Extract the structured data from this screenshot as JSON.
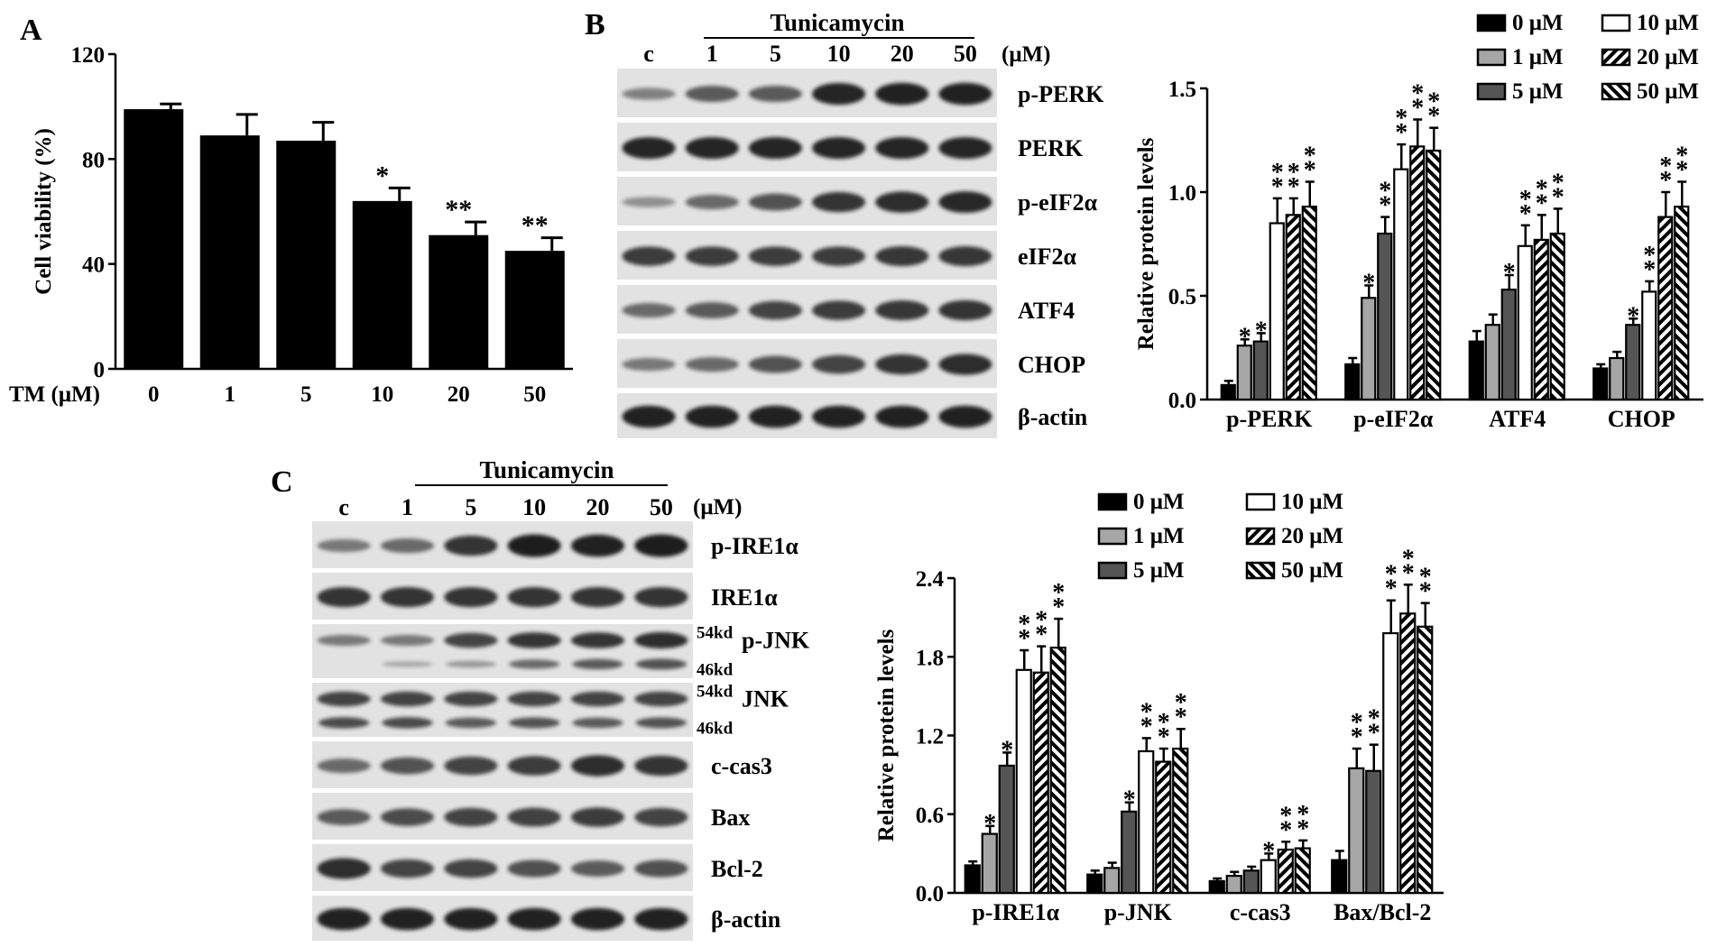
{
  "figure": {
    "panel_letters": [
      "A",
      "B",
      "C"
    ],
    "tunicamycin_label": "Tunicamycin",
    "unit_label": "(μM)"
  },
  "colors": {
    "band": "#151515",
    "blot_bg": "#e2e2e2",
    "bar_black": "#000000",
    "bar_lightgray": "#a6a6a6",
    "bar_darkgray": "#555555",
    "bar_white": "#ffffff"
  },
  "western_b": {
    "lanes": [
      "c",
      "1",
      "5",
      "10",
      "20",
      "50"
    ],
    "rows": [
      {
        "label": "p-PERK",
        "intensity": [
          0.3,
          0.55,
          0.55,
          0.9,
          0.92,
          0.92
        ]
      },
      {
        "label": "PERK",
        "intensity": [
          0.9,
          0.9,
          0.9,
          0.9,
          0.9,
          0.9
        ]
      },
      {
        "label": "p-eIF2α",
        "intensity": [
          0.2,
          0.45,
          0.6,
          0.8,
          0.85,
          0.88
        ]
      },
      {
        "label": "eIF2α",
        "intensity": [
          0.75,
          0.75,
          0.75,
          0.75,
          0.78,
          0.78
        ]
      },
      {
        "label": "ATF4",
        "intensity": [
          0.45,
          0.55,
          0.7,
          0.75,
          0.78,
          0.8
        ]
      },
      {
        "label": "CHOP",
        "intensity": [
          0.35,
          0.45,
          0.6,
          0.7,
          0.8,
          0.85
        ]
      },
      {
        "label": "β-actin",
        "intensity": [
          0.92,
          0.92,
          0.92,
          0.92,
          0.92,
          0.92
        ]
      }
    ]
  },
  "western_c": {
    "lanes": [
      "c",
      "1",
      "5",
      "10",
      "20",
      "50"
    ],
    "rows": [
      {
        "label": "p-IRE1α",
        "intensity": [
          0.35,
          0.45,
          0.8,
          0.95,
          0.92,
          0.95
        ]
      },
      {
        "label": "IRE1α",
        "intensity": [
          0.8,
          0.8,
          0.8,
          0.8,
          0.8,
          0.8
        ]
      },
      {
        "label": "p-JNK",
        "markers": [
          "54kd",
          "46kd"
        ],
        "intensity": [
          0.35,
          0.35,
          0.7,
          0.8,
          0.8,
          0.85
        ],
        "lower_intensity": [
          0.0,
          0.05,
          0.15,
          0.45,
          0.55,
          0.6
        ]
      },
      {
        "label": "JNK",
        "markers": [
          "54kd",
          "46kd"
        ],
        "intensity": [
          0.7,
          0.7,
          0.7,
          0.7,
          0.7,
          0.7
        ],
        "lower_intensity": [
          0.65,
          0.65,
          0.55,
          0.6,
          0.55,
          0.6
        ]
      },
      {
        "label": "c-cas3",
        "intensity": [
          0.45,
          0.6,
          0.7,
          0.75,
          0.85,
          0.8
        ]
      },
      {
        "label": "Bax",
        "intensity": [
          0.55,
          0.65,
          0.7,
          0.72,
          0.75,
          0.7
        ]
      },
      {
        "label": "Bcl-2",
        "intensity": [
          0.85,
          0.7,
          0.7,
          0.62,
          0.55,
          0.62
        ]
      },
      {
        "label": "β-actin",
        "intensity": [
          0.92,
          0.92,
          0.92,
          0.92,
          0.92,
          0.92
        ]
      }
    ]
  },
  "chart_data": [
    {
      "panel": "A",
      "type": "bar",
      "title": "",
      "xlabel": "TM (μM)",
      "ylabel": "Cell viability (%)",
      "categories": [
        "0",
        "1",
        "5",
        "10",
        "20",
        "50"
      ],
      "values": [
        99,
        89,
        87,
        64,
        51,
        45
      ],
      "errors": [
        2,
        8,
        7,
        5,
        5,
        5
      ],
      "significance": [
        "",
        "",
        "",
        "*",
        "**",
        "**"
      ],
      "ylim": [
        0,
        120
      ],
      "yticks": [
        "0",
        "40",
        "80",
        "120"
      ],
      "grid": false
    },
    {
      "panel": "B",
      "type": "bar",
      "title": "",
      "xlabel": "",
      "ylabel": "Relative protein levels",
      "categories": [
        "p-PERK",
        "p-eIF2α",
        "ATF4",
        "CHOP"
      ],
      "ylim": [
        0,
        1.5
      ],
      "yticks": [
        "0.0",
        "0.5",
        "1.0",
        "1.5"
      ],
      "legend_position": "top-right",
      "grid": false,
      "series": [
        {
          "name": "0 μM",
          "fill": "black",
          "values": [
            0.07,
            0.17,
            0.28,
            0.15
          ],
          "errors": [
            0.02,
            0.03,
            0.05,
            0.02
          ],
          "significance": [
            "",
            "",
            "",
            ""
          ]
        },
        {
          "name": "1 μM",
          "fill": "lightgray",
          "values": [
            0.26,
            0.49,
            0.36,
            0.2
          ],
          "errors": [
            0.03,
            0.06,
            0.05,
            0.03
          ],
          "significance": [
            "*",
            "*",
            "",
            ""
          ]
        },
        {
          "name": "5 μM",
          "fill": "darkgray",
          "values": [
            0.28,
            0.8,
            0.53,
            0.36
          ],
          "errors": [
            0.04,
            0.08,
            0.07,
            0.03
          ],
          "significance": [
            "*",
            "**",
            "*",
            "*"
          ]
        },
        {
          "name": "10 μM",
          "fill": "white",
          "values": [
            0.85,
            1.11,
            0.74,
            0.52
          ],
          "errors": [
            0.12,
            0.12,
            0.1,
            0.05
          ],
          "significance": [
            "**",
            "**",
            "**",
            "**"
          ]
        },
        {
          "name": "20 μM",
          "fill": "hatch",
          "values": [
            0.89,
            1.22,
            0.77,
            0.88
          ],
          "errors": [
            0.08,
            0.13,
            0.12,
            0.12
          ],
          "significance": [
            "**",
            "**",
            "**",
            "**"
          ]
        },
        {
          "name": "50 μM",
          "fill": "hatch-reverse",
          "values": [
            0.93,
            1.2,
            0.8,
            0.93
          ],
          "errors": [
            0.12,
            0.11,
            0.12,
            0.12
          ],
          "significance": [
            "**",
            "**",
            "**",
            "**"
          ]
        }
      ]
    },
    {
      "panel": "C",
      "type": "bar",
      "title": "",
      "xlabel": "",
      "ylabel": "Relative protein levels",
      "categories": [
        "p-IRE1α",
        "p-JNK",
        "c-cas3",
        "Bax/Bcl-2"
      ],
      "ylim": [
        0,
        2.4
      ],
      "yticks": [
        "0.0",
        "0.6",
        "1.2",
        "1.8",
        "2.4"
      ],
      "legend_position": "top-right",
      "grid": false,
      "series": [
        {
          "name": "0 μM",
          "fill": "black",
          "values": [
            0.21,
            0.14,
            0.09,
            0.25
          ],
          "errors": [
            0.03,
            0.03,
            0.02,
            0.07
          ],
          "significance": [
            "",
            "",
            "",
            ""
          ]
        },
        {
          "name": "1 μM",
          "fill": "lightgray",
          "values": [
            0.45,
            0.19,
            0.13,
            0.95
          ],
          "errors": [
            0.06,
            0.04,
            0.03,
            0.15
          ],
          "significance": [
            "*",
            "",
            "",
            "**"
          ]
        },
        {
          "name": "5 μM",
          "fill": "darkgray",
          "values": [
            0.97,
            0.62,
            0.17,
            0.93
          ],
          "errors": [
            0.1,
            0.07,
            0.03,
            0.2
          ],
          "significance": [
            "*",
            "*",
            "",
            "**"
          ]
        },
        {
          "name": "10 μM",
          "fill": "white",
          "values": [
            1.7,
            1.08,
            0.25,
            1.98
          ],
          "errors": [
            0.15,
            0.1,
            0.05,
            0.25
          ],
          "significance": [
            "**",
            "**",
            "*",
            "**"
          ]
        },
        {
          "name": "20 μM",
          "fill": "hatch",
          "values": [
            1.68,
            1.0,
            0.33,
            2.13
          ],
          "errors": [
            0.2,
            0.1,
            0.06,
            0.22
          ],
          "significance": [
            "**",
            "**",
            "**",
            "**"
          ]
        },
        {
          "name": "50 μM",
          "fill": "hatch-reverse",
          "values": [
            1.87,
            1.1,
            0.34,
            2.03
          ],
          "errors": [
            0.22,
            0.15,
            0.06,
            0.18
          ],
          "significance": [
            "**",
            "**",
            "**",
            "**"
          ]
        }
      ]
    }
  ]
}
